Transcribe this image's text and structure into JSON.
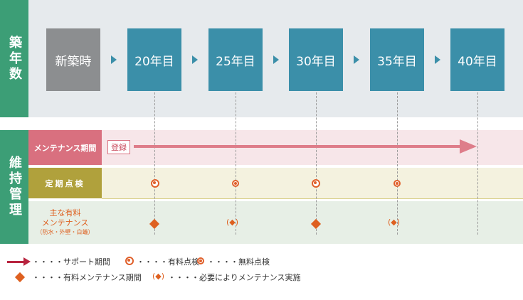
{
  "sidebar": {
    "age_label": "築年数",
    "maintenance_label": "維持管理"
  },
  "timeline": {
    "stages": [
      "新築時",
      "20年目",
      "25年目",
      "30年目",
      "35年目",
      "40年目"
    ]
  },
  "rows": {
    "maintenance_period": "メンテナンス期間",
    "registration": "登録",
    "inspection": "定期点検",
    "paid_main_1": "主な有料",
    "paid_main_2": "メンテナンス",
    "paid_main_3": "（防水・外壁・白蟻）"
  },
  "legend": {
    "support": "・・・・サポート期間",
    "paid_inspection": "・・・・有料点検",
    "free_inspection": "・・・・無料点検",
    "paid_maintenance": "・・・・有料メンテナンス期間",
    "as_needed_symbol": "(◆)",
    "as_needed": "・・・・必要によりメンテナンス実施"
  },
  "colors": {
    "teal_box": "#3b8fa9",
    "gray_box": "#8c8e90",
    "green_label": "#3c9e76",
    "pink_band": "#f7e6e9",
    "pink_label": "#d9707f",
    "yellow_band": "#f4f2df",
    "olive_label": "#b0a13c",
    "green_band": "#e7efe6",
    "orange": "#de6020"
  }
}
